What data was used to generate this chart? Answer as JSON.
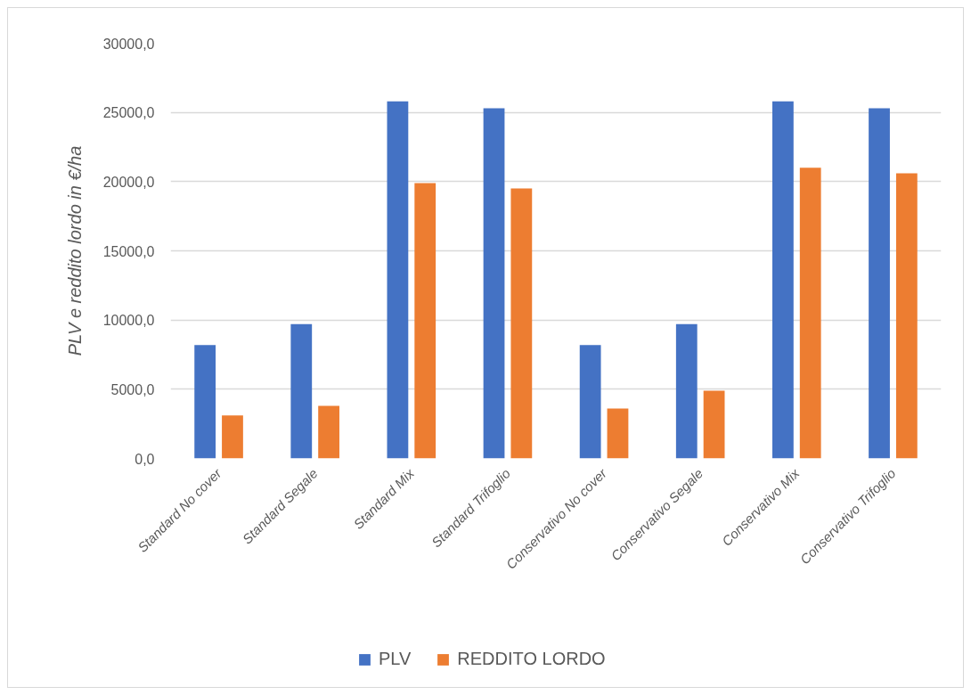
{
  "chart_data": {
    "type": "bar",
    "categories": [
      "Standard No cover",
      "Standard Segale",
      "Standard Mix",
      "Standard Trifoglio",
      "Conservativo No cover",
      "Conservativo Segale",
      "Conservativo Mix",
      "Conservativo Trifoglio"
    ],
    "series": [
      {
        "name": "PLV",
        "color": "#4472c4",
        "values": [
          8200,
          9700,
          25800,
          25300,
          8200,
          9700,
          25800,
          25300
        ]
      },
      {
        "name": "REDDITO LORDO",
        "color": "#ed7d31",
        "values": [
          3100,
          3800,
          19900,
          19500,
          3600,
          4900,
          21000,
          20600
        ]
      }
    ],
    "ylabel": "PLV e reddito lordo in €/ha",
    "ylim": [
      0,
      30000
    ],
    "yticks": [
      {
        "value": 0,
        "label": "0,0"
      },
      {
        "value": 5000,
        "label": "5000,0"
      },
      {
        "value": 10000,
        "label": "10000,0"
      },
      {
        "value": 15000,
        "label": "15000,0"
      },
      {
        "value": 20000,
        "label": "20000,0"
      },
      {
        "value": 25000,
        "label": "25000,0"
      },
      {
        "value": 30000,
        "label": "30000,0"
      }
    ],
    "grid": "y",
    "legend": "bottom"
  }
}
